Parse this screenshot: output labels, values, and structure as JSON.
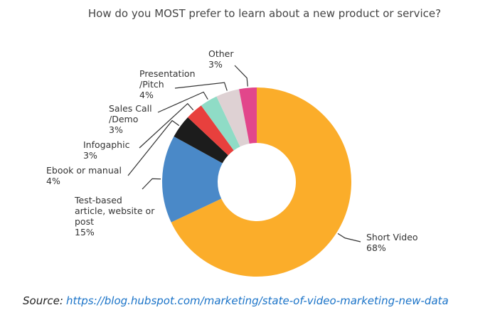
{
  "chart_data": {
    "type": "donut",
    "title": "How do you MOST prefer to learn about a new product or service?",
    "categories": [
      "Short Video",
      "Test-based\narticle, website or\npost",
      "Ebook or manual",
      "Infogaphic",
      "Sales Call\n/Demo",
      "Presentation\n/Pitch",
      "Other"
    ],
    "values": [
      68,
      15,
      4,
      3,
      3,
      4,
      3
    ],
    "value_labels": [
      "68%",
      "15%",
      "4%",
      "3%",
      "3%",
      "4%",
      "3%"
    ],
    "colors": [
      "#fbad2a",
      "#4a89c8",
      "#1c1c1c",
      "#e8403d",
      "#8fdcc6",
      "#ded1d3",
      "#e2468b"
    ]
  },
  "source": {
    "label": "Source:",
    "url": "https://blog.hubspot.com/marketing/state-of-video-marketing-new-data"
  }
}
